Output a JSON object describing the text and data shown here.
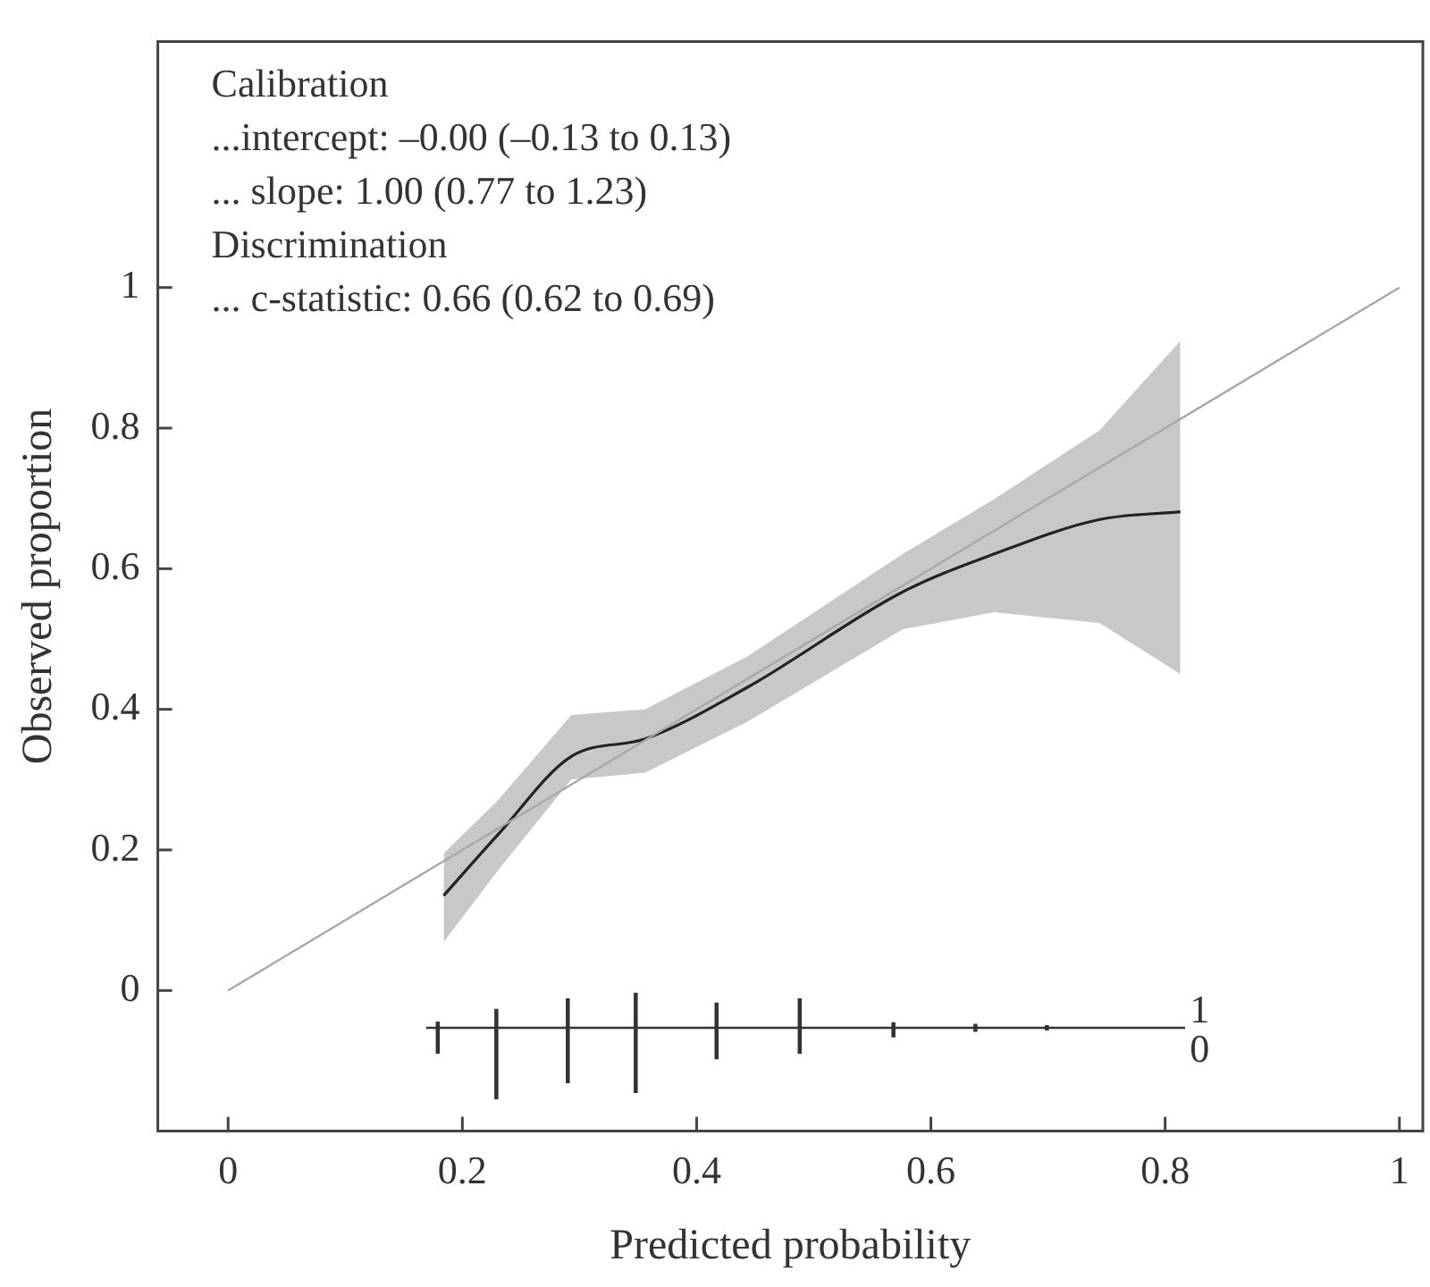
{
  "chart_data": {
    "type": "line",
    "xlabel": "Predicted probability",
    "ylabel": "Observed proportion",
    "xlim": [
      -0.06,
      1.02
    ],
    "ylim": [
      -0.2,
      1.35
    ],
    "xticks": [
      0,
      0.2,
      0.4,
      0.6,
      0.8,
      1
    ],
    "yticks": [
      0,
      0.2,
      0.4,
      0.6,
      0.8,
      1
    ],
    "grid": false,
    "legend": false,
    "marker": "none",
    "annotations": [
      "Calibration",
      "...intercept: –0.00 (–0.13 to 0.13)",
      "... slope: 1.00 (0.77 to 1.23)",
      "Discrimination",
      "... c-statistic: 0.66 (0.62 to 0.69)"
    ],
    "series": [
      {
        "color": "#a8a8a8",
        "x": [
          0,
          1
        ],
        "values": [
          0,
          1
        ]
      },
      {
        "color": "#222222",
        "x": [
          0.184,
          0.23,
          0.293,
          0.356,
          0.443,
          0.576,
          0.654,
          0.744,
          0.813
        ],
        "values": [
          0.135,
          0.221,
          0.333,
          0.358,
          0.431,
          0.567,
          0.621,
          0.67,
          0.681
        ],
        "lower": [
          0.069,
          0.17,
          0.3,
          0.31,
          0.382,
          0.514,
          0.538,
          0.523,
          0.45
        ],
        "upper": [
          0.195,
          0.27,
          0.392,
          0.4,
          0.475,
          0.621,
          0.699,
          0.797,
          0.924
        ]
      },
      {
        "color": "#333333",
        "x": [
          0.169,
          0.817
        ],
        "values": [
          -0.053,
          -0.053
        ]
      },
      {
        "type": "bar",
        "name": "1",
        "color": "#333333",
        "x": [
          0.179,
          0.229,
          0.29,
          0.348,
          0.417,
          0.488,
          0.568,
          0.638,
          0.699
        ],
        "base": [
          -0.053,
          -0.053,
          -0.053,
          -0.053,
          -0.053,
          -0.053,
          -0.053,
          -0.053,
          -0.053
        ],
        "values": [
          0.008,
          0.026,
          0.041,
          0.049,
          0.035,
          0.041,
          0.007,
          0.005,
          0.003
        ]
      },
      {
        "type": "bar",
        "name": "0",
        "color": "#333333",
        "x": [
          0.179,
          0.229,
          0.29,
          0.348,
          0.417,
          0.488,
          0.568,
          0.638,
          0.699
        ],
        "base": [
          -0.053,
          -0.053,
          -0.053,
          -0.053,
          -0.053,
          -0.053,
          -0.053,
          -0.053,
          -0.053
        ],
        "values": [
          -0.036,
          -0.101,
          -0.078,
          -0.092,
          -0.044,
          -0.036,
          -0.013,
          -0.005,
          -0.003
        ]
      }
    ]
  }
}
